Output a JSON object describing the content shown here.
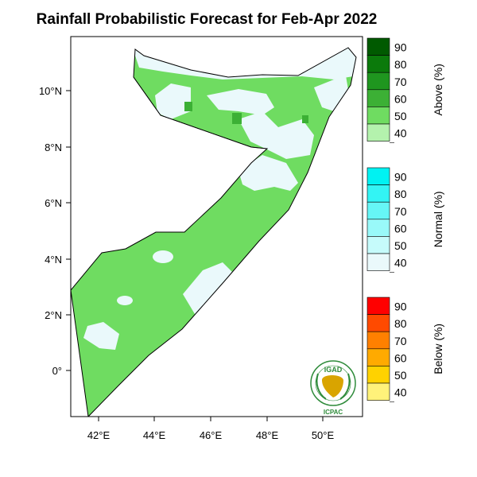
{
  "title": "Rainfall Probabilistic Forecast for Feb-Apr 2022",
  "map": {
    "x_ticks": [
      "42°E",
      "44°E",
      "46°E",
      "48°E",
      "50°E"
    ],
    "y_ticks": [
      "10°N",
      "8°N",
      "6°N",
      "4°N",
      "2°N",
      "0°"
    ]
  },
  "colorbars": [
    {
      "id": "above",
      "title": "Above (%)",
      "labels": [
        "90",
        "80",
        "70",
        "60",
        "50",
        "40"
      ],
      "colors": [
        "#005a00",
        "#0b7a0b",
        "#1f961f",
        "#3cb035",
        "#6fdc61",
        "#b4f2ad"
      ]
    },
    {
      "id": "normal",
      "title": "Normal (%)",
      "labels": [
        "90",
        "80",
        "70",
        "60",
        "50",
        "40"
      ],
      "colors": [
        "#00f2f2",
        "#33f4f4",
        "#66f6f6",
        "#99f9f9",
        "#c6fbfb",
        "#eaf9fb"
      ]
    },
    {
      "id": "below",
      "title": "Below (%)",
      "labels": [
        "90",
        "80",
        "70",
        "60",
        "50",
        "40"
      ],
      "colors": [
        "#ff0000",
        "#ff4a00",
        "#ff8000",
        "#ffaa00",
        "#ffd200",
        "#fff27a"
      ]
    }
  ],
  "logo": {
    "top": "IGAD",
    "bottom": "ICPAC"
  },
  "colors": {
    "land_dominant": "#6fdc61",
    "land_light": "#eaf9fb",
    "land_green_dark": "#3cb035",
    "coast": "#000000"
  }
}
